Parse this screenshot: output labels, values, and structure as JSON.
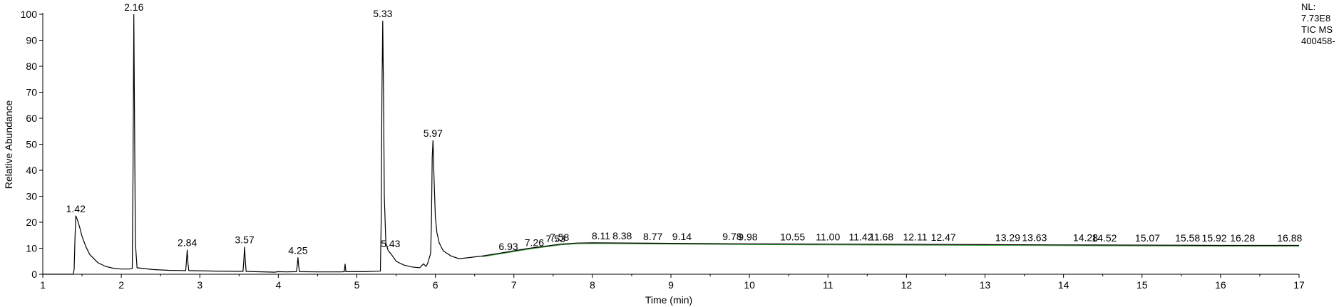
{
  "chart_data": {
    "type": "line",
    "title": "",
    "xlabel": "Time (min)",
    "ylabel": "Relative Abundance",
    "xlim": [
      1,
      17
    ],
    "ylim": [
      0,
      100
    ],
    "x_ticks": [
      1,
      2,
      3,
      4,
      5,
      6,
      7,
      8,
      9,
      10,
      11,
      12,
      13,
      14,
      15,
      16,
      17
    ],
    "y_ticks": [
      0,
      10,
      20,
      30,
      40,
      50,
      60,
      70,
      80,
      90,
      100
    ],
    "grid": false,
    "legend": "none",
    "trace_color": "#000000",
    "baseline_color": "#2e9b2e",
    "info": {
      "nl_label": "NL:",
      "nl_value": "7.73E8",
      "scan": "TIC  MS",
      "file": "400458-"
    },
    "peaks": [
      {
        "rt": 1.42,
        "label": "1.42",
        "height": 22.5
      },
      {
        "rt": 2.16,
        "label": "2.16",
        "height": 100
      },
      {
        "rt": 2.84,
        "label": "2.84",
        "height": 9.4
      },
      {
        "rt": 3.57,
        "label": "3.57",
        "height": 10.5
      },
      {
        "rt": 4.25,
        "label": "4.25",
        "height": 6.5
      },
      {
        "rt": 5.33,
        "label": "5.33",
        "height": 97.5
      },
      {
        "rt": 5.43,
        "label": "5.43",
        "height": 9.0
      },
      {
        "rt": 5.97,
        "label": "5.97",
        "height": 51.5
      },
      {
        "rt": 6.93,
        "label": "6.93",
        "height": 8.0
      },
      {
        "rt": 7.26,
        "label": "7.26",
        "height": 9.5
      },
      {
        "rt": 7.53,
        "label": "7.53",
        "height": 11.0
      },
      {
        "rt": 7.58,
        "label": "7.58",
        "height": 11.5
      },
      {
        "rt": 8.11,
        "label": "8.11",
        "height": 12.0
      },
      {
        "rt": 8.38,
        "label": "8.38",
        "height": 12.0
      },
      {
        "rt": 8.77,
        "label": "8.77",
        "height": 11.8
      },
      {
        "rt": 9.14,
        "label": "9.14",
        "height": 11.8
      },
      {
        "rt": 9.78,
        "label": "9.78",
        "height": 11.8
      },
      {
        "rt": 9.98,
        "label": "9.98",
        "height": 11.6
      },
      {
        "rt": 10.55,
        "label": "10.55",
        "height": 11.6
      },
      {
        "rt": 11.0,
        "label": "11.00",
        "height": 11.6
      },
      {
        "rt": 11.42,
        "label": "11.42",
        "height": 11.6
      },
      {
        "rt": 11.68,
        "label": "11.68",
        "height": 11.6
      },
      {
        "rt": 12.11,
        "label": "12.11",
        "height": 11.6
      },
      {
        "rt": 12.47,
        "label": "12.47",
        "height": 11.5
      },
      {
        "rt": 13.29,
        "label": "13.29",
        "height": 11.4
      },
      {
        "rt": 13.63,
        "label": "13.63",
        "height": 11.4
      },
      {
        "rt": 14.28,
        "label": "14.28",
        "height": 11.4
      },
      {
        "rt": 14.52,
        "label": "14.52",
        "height": 11.3
      },
      {
        "rt": 15.07,
        "label": "15.07",
        "height": 11.3
      },
      {
        "rt": 15.58,
        "label": "15.58",
        "height": 11.3
      },
      {
        "rt": 15.92,
        "label": "15.92",
        "height": 11.2
      },
      {
        "rt": 16.28,
        "label": "16.28",
        "height": 11.2
      },
      {
        "rt": 16.88,
        "label": "16.88",
        "height": 11.2
      }
    ],
    "trace": [
      [
        1.0,
        0
      ],
      [
        1.39,
        0
      ],
      [
        1.4,
        2
      ],
      [
        1.41,
        14
      ],
      [
        1.42,
        22.5
      ],
      [
        1.44,
        21
      ],
      [
        1.47,
        18
      ],
      [
        1.5,
        14.5
      ],
      [
        1.55,
        10.5
      ],
      [
        1.6,
        7.5
      ],
      [
        1.7,
        4.5
      ],
      [
        1.8,
        3.0
      ],
      [
        1.9,
        2.3
      ],
      [
        2.0,
        2.0
      ],
      [
        2.1,
        2.0
      ],
      [
        2.14,
        2.2
      ],
      [
        2.15,
        40
      ],
      [
        2.16,
        100
      ],
      [
        2.17,
        55
      ],
      [
        2.18,
        12
      ],
      [
        2.2,
        2.5
      ],
      [
        2.4,
        1.8
      ],
      [
        2.6,
        1.5
      ],
      [
        2.82,
        1.4
      ],
      [
        2.83,
        5
      ],
      [
        2.84,
        9.4
      ],
      [
        2.85,
        4
      ],
      [
        2.86,
        1.4
      ],
      [
        3.2,
        1.2
      ],
      [
        3.55,
        1.1
      ],
      [
        3.56,
        5
      ],
      [
        3.57,
        10.5
      ],
      [
        3.58,
        5
      ],
      [
        3.59,
        1.1
      ],
      [
        3.7,
        1.0
      ],
      [
        3.95,
        0.8
      ],
      [
        4.0,
        1.0
      ],
      [
        4.1,
        0.9
      ],
      [
        4.23,
        1.0
      ],
      [
        4.24,
        3
      ],
      [
        4.25,
        6.5
      ],
      [
        4.26,
        3
      ],
      [
        4.27,
        1.0
      ],
      [
        4.5,
        0.9
      ],
      [
        4.8,
        0.9
      ],
      [
        4.84,
        1.0
      ],
      [
        4.85,
        4
      ],
      [
        4.86,
        1.0
      ],
      [
        5.1,
        1.0
      ],
      [
        5.3,
        1.2
      ],
      [
        5.31,
        20
      ],
      [
        5.32,
        70
      ],
      [
        5.33,
        97.5
      ],
      [
        5.34,
        70
      ],
      [
        5.35,
        30
      ],
      [
        5.37,
        12
      ],
      [
        5.4,
        9
      ],
      [
        5.43,
        8
      ],
      [
        5.5,
        5
      ],
      [
        5.6,
        3.5
      ],
      [
        5.7,
        2.8
      ],
      [
        5.8,
        2.5
      ],
      [
        5.85,
        4
      ],
      [
        5.88,
        3
      ],
      [
        5.9,
        4
      ],
      [
        5.94,
        8
      ],
      [
        5.95,
        20
      ],
      [
        5.96,
        45
      ],
      [
        5.97,
        51.5
      ],
      [
        5.98,
        40
      ],
      [
        6.0,
        22
      ],
      [
        6.02,
        16
      ],
      [
        6.05,
        12
      ],
      [
        6.1,
        9
      ],
      [
        6.2,
        7
      ],
      [
        6.3,
        6.0
      ],
      [
        6.4,
        6.3
      ],
      [
        6.6,
        7.0
      ],
      [
        6.8,
        8.0
      ],
      [
        7.0,
        9.0
      ],
      [
        7.2,
        10.0
      ],
      [
        7.4,
        10.8
      ],
      [
        7.6,
        11.6
      ],
      [
        7.8,
        12.0
      ],
      [
        8.0,
        12.1
      ],
      [
        9.0,
        11.9
      ],
      [
        10.0,
        11.7
      ],
      [
        11.0,
        11.6
      ],
      [
        12.0,
        11.5
      ],
      [
        13.0,
        11.4
      ],
      [
        14.0,
        11.3
      ],
      [
        15.0,
        11.2
      ],
      [
        16.0,
        11.1
      ],
      [
        17.0,
        11.1
      ]
    ]
  }
}
